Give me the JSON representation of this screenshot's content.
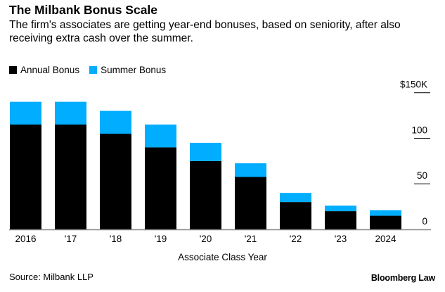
{
  "title": "The Milbank Bonus Scale",
  "subtitle": "The firm's associates are getting year-end bonuses, based on seniority, after also receiving extra cash over the summer.",
  "source": "Source: Milbank LLP",
  "logo": "Bloomberg Law",
  "chart_data": {
    "type": "bar",
    "stacked": true,
    "categories": [
      "2016",
      "'17",
      "'18",
      "'19",
      "'20",
      "'21",
      "'22",
      "'23",
      "2024"
    ],
    "series": [
      {
        "name": "Annual Bonus",
        "color": "#000000",
        "values": [
          115,
          115,
          105,
          90,
          75,
          57.5,
          30,
          20,
          15
        ]
      },
      {
        "name": "Summer Bonus",
        "color": "#00adff",
        "values": [
          25,
          25,
          25,
          25,
          20,
          15,
          10,
          6,
          6
        ]
      }
    ],
    "xlabel": "Associate Class Year",
    "ylabel": "",
    "ylim": [
      0,
      150
    ],
    "yticks": [
      0,
      50,
      100,
      150
    ],
    "ytick_labels": [
      "0",
      "50",
      "100",
      "$150K"
    ],
    "y_axis_side": "right",
    "legend_placement": "top-left",
    "grid": false
  }
}
